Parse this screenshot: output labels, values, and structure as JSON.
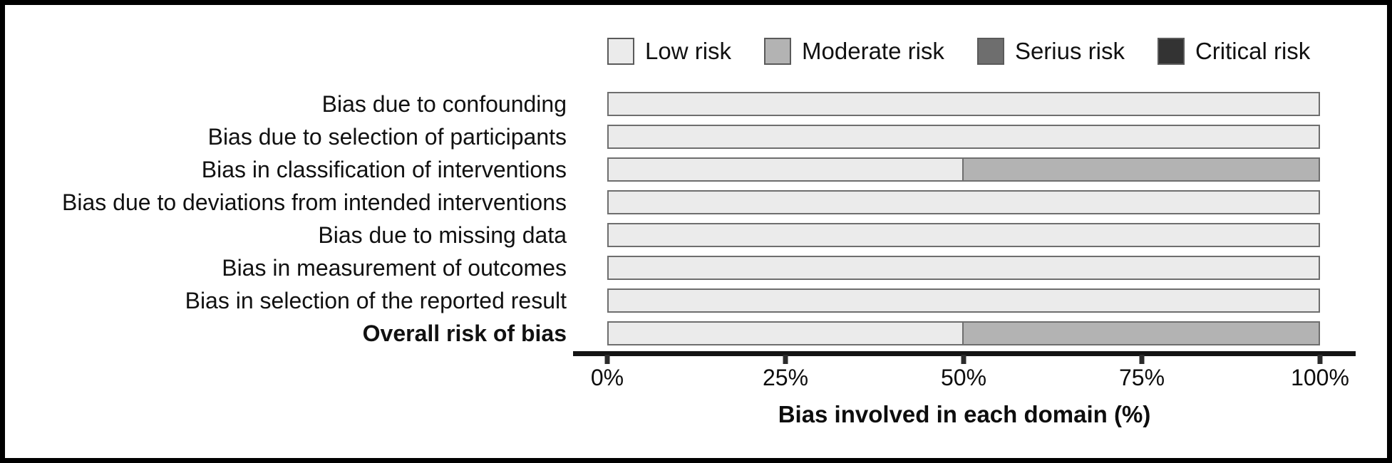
{
  "chart_data": {
    "type": "bar",
    "orientation": "horizontal",
    "stacked": true,
    "title": "",
    "xlabel": "Bias involved in each domain (%)",
    "ylabel": "",
    "xlim": [
      0,
      100
    ],
    "x_ticks": [
      "0%",
      "25%",
      "50%",
      "75%",
      "100%"
    ],
    "grid": false,
    "legend_position": "top",
    "categories": [
      "Bias due to confounding",
      "Bias due to selection of participants",
      "Bias in classification of interventions",
      "Bias due to deviations from intended interventions",
      "Bias due to missing data",
      "Bias in measurement of outcomes",
      "Bias in selection of the reported result",
      "Overall risk of bias"
    ],
    "bold_categories": [
      "Overall risk of bias"
    ],
    "series": [
      {
        "name": "Low risk",
        "color": "#ebebeb",
        "values": [
          100,
          100,
          50,
          100,
          100,
          100,
          100,
          50
        ]
      },
      {
        "name": "Moderate risk",
        "color": "#b3b3b3",
        "values": [
          0,
          0,
          50,
          0,
          0,
          0,
          0,
          50
        ]
      },
      {
        "name": "Serius risk",
        "color": "#6e6e6e",
        "values": [
          0,
          0,
          0,
          0,
          0,
          0,
          0,
          0
        ]
      },
      {
        "name": "Critical risk",
        "color": "#333333",
        "values": [
          0,
          0,
          0,
          0,
          0,
          0,
          0,
          0
        ]
      }
    ],
    "bar_border_color": "#6e6e6e"
  }
}
